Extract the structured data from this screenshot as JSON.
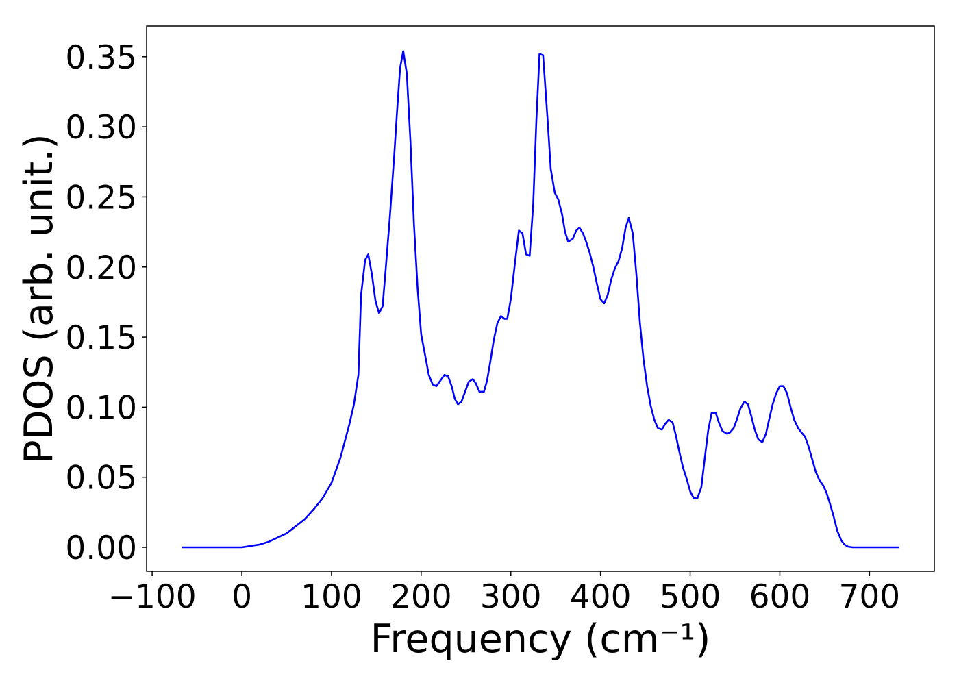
{
  "chart_data": {
    "type": "line",
    "x_label": "Frequency (cm⁻¹)",
    "y_label": "PDOS (arb. unit.)",
    "color": "#0000ff",
    "x": [
      -67,
      0,
      10,
      20,
      30,
      40,
      50,
      60,
      70,
      80,
      90,
      100,
      110,
      120,
      125,
      130,
      133,
      137.5,
      141,
      145,
      149,
      153,
      157,
      160,
      165,
      170,
      173,
      176.5,
      180,
      184,
      188,
      192,
      196,
      200,
      205,
      208.5,
      213,
      217,
      221.5,
      226,
      230,
      234,
      237.5,
      241,
      245,
      249,
      253,
      257.5,
      261,
      265,
      270,
      273.5,
      277,
      281,
      285,
      289,
      293,
      296,
      300,
      305,
      309,
      313,
      317,
      321,
      325,
      328.5,
      332,
      336,
      341,
      344.5,
      349,
      353,
      357,
      360.5,
      364,
      369,
      373,
      376.5,
      380.5,
      384,
      388,
      392,
      396,
      400,
      404,
      408,
      412,
      416,
      420,
      424,
      428,
      431.5,
      436,
      440,
      444,
      448,
      452,
      456,
      460,
      464,
      468.5,
      472,
      476,
      480.5,
      484,
      488,
      492,
      496.5,
      500,
      504,
      508,
      512.5,
      516,
      520,
      524,
      528.5,
      532,
      536,
      541,
      544.5,
      548.5,
      552,
      556,
      560.5,
      564.5,
      568,
      572,
      576,
      580.5,
      584.5,
      588,
      592,
      596,
      600,
      604,
      608,
      612,
      616,
      620.5,
      624,
      628,
      632,
      636,
      640,
      644,
      648.5,
      652,
      656,
      660,
      664,
      668.5,
      672,
      676,
      681,
      733
    ],
    "values": [
      0,
      0,
      0.001,
      0.002,
      0.004,
      0.007,
      0.01,
      0.015,
      0.02,
      0.027,
      0.035,
      0.046,
      0.064,
      0.088,
      0.102,
      0.123,
      0.18,
      0.205,
      0.209,
      0.195,
      0.176,
      0.167,
      0.172,
      0.195,
      0.235,
      0.28,
      0.31,
      0.342,
      0.354,
      0.338,
      0.29,
      0.23,
      0.185,
      0.152,
      0.135,
      0.123,
      0.116,
      0.115,
      0.119,
      0.123,
      0.122,
      0.115,
      0.106,
      0.102,
      0.104,
      0.111,
      0.118,
      0.12,
      0.117,
      0.111,
      0.111,
      0.119,
      0.132,
      0.148,
      0.16,
      0.165,
      0.163,
      0.163,
      0.177,
      0.205,
      0.226,
      0.224,
      0.209,
      0.208,
      0.245,
      0.305,
      0.352,
      0.351,
      0.305,
      0.27,
      0.253,
      0.248,
      0.238,
      0.225,
      0.218,
      0.22,
      0.226,
      0.228,
      0.224,
      0.218,
      0.21,
      0.2,
      0.188,
      0.177,
      0.174,
      0.18,
      0.191,
      0.199,
      0.204,
      0.213,
      0.228,
      0.235,
      0.224,
      0.195,
      0.16,
      0.134,
      0.115,
      0.101,
      0.091,
      0.085,
      0.084,
      0.088,
      0.091,
      0.089,
      0.08,
      0.068,
      0.057,
      0.048,
      0.04,
      0.035,
      0.035,
      0.043,
      0.062,
      0.083,
      0.096,
      0.096,
      0.089,
      0.083,
      0.081,
      0.082,
      0.085,
      0.091,
      0.099,
      0.104,
      0.102,
      0.094,
      0.084,
      0.077,
      0.075,
      0.081,
      0.091,
      0.102,
      0.11,
      0.115,
      0.115,
      0.11,
      0.1,
      0.091,
      0.085,
      0.082,
      0.079,
      0.072,
      0.063,
      0.054,
      0.048,
      0.044,
      0.039,
      0.031,
      0.022,
      0.012,
      0.005,
      0.002,
      0.0005,
      0,
      0
    ],
    "xlim": [
      -106.2,
      772.3
    ],
    "ylim": [
      -0.0171,
      0.3719
    ],
    "xticks": [
      {
        "value": -100,
        "label": "−100"
      },
      0,
      100,
      200,
      300,
      400,
      500,
      600,
      700
    ],
    "yticks": [
      {
        "value": 0,
        "label": "0.00"
      },
      0.05,
      {
        "value": 0.1,
        "label": "0.10"
      },
      0.15,
      {
        "value": 0.2,
        "label": "0.20"
      },
      0.25,
      {
        "value": 0.3,
        "label": "0.30"
      },
      0.35
    ]
  }
}
